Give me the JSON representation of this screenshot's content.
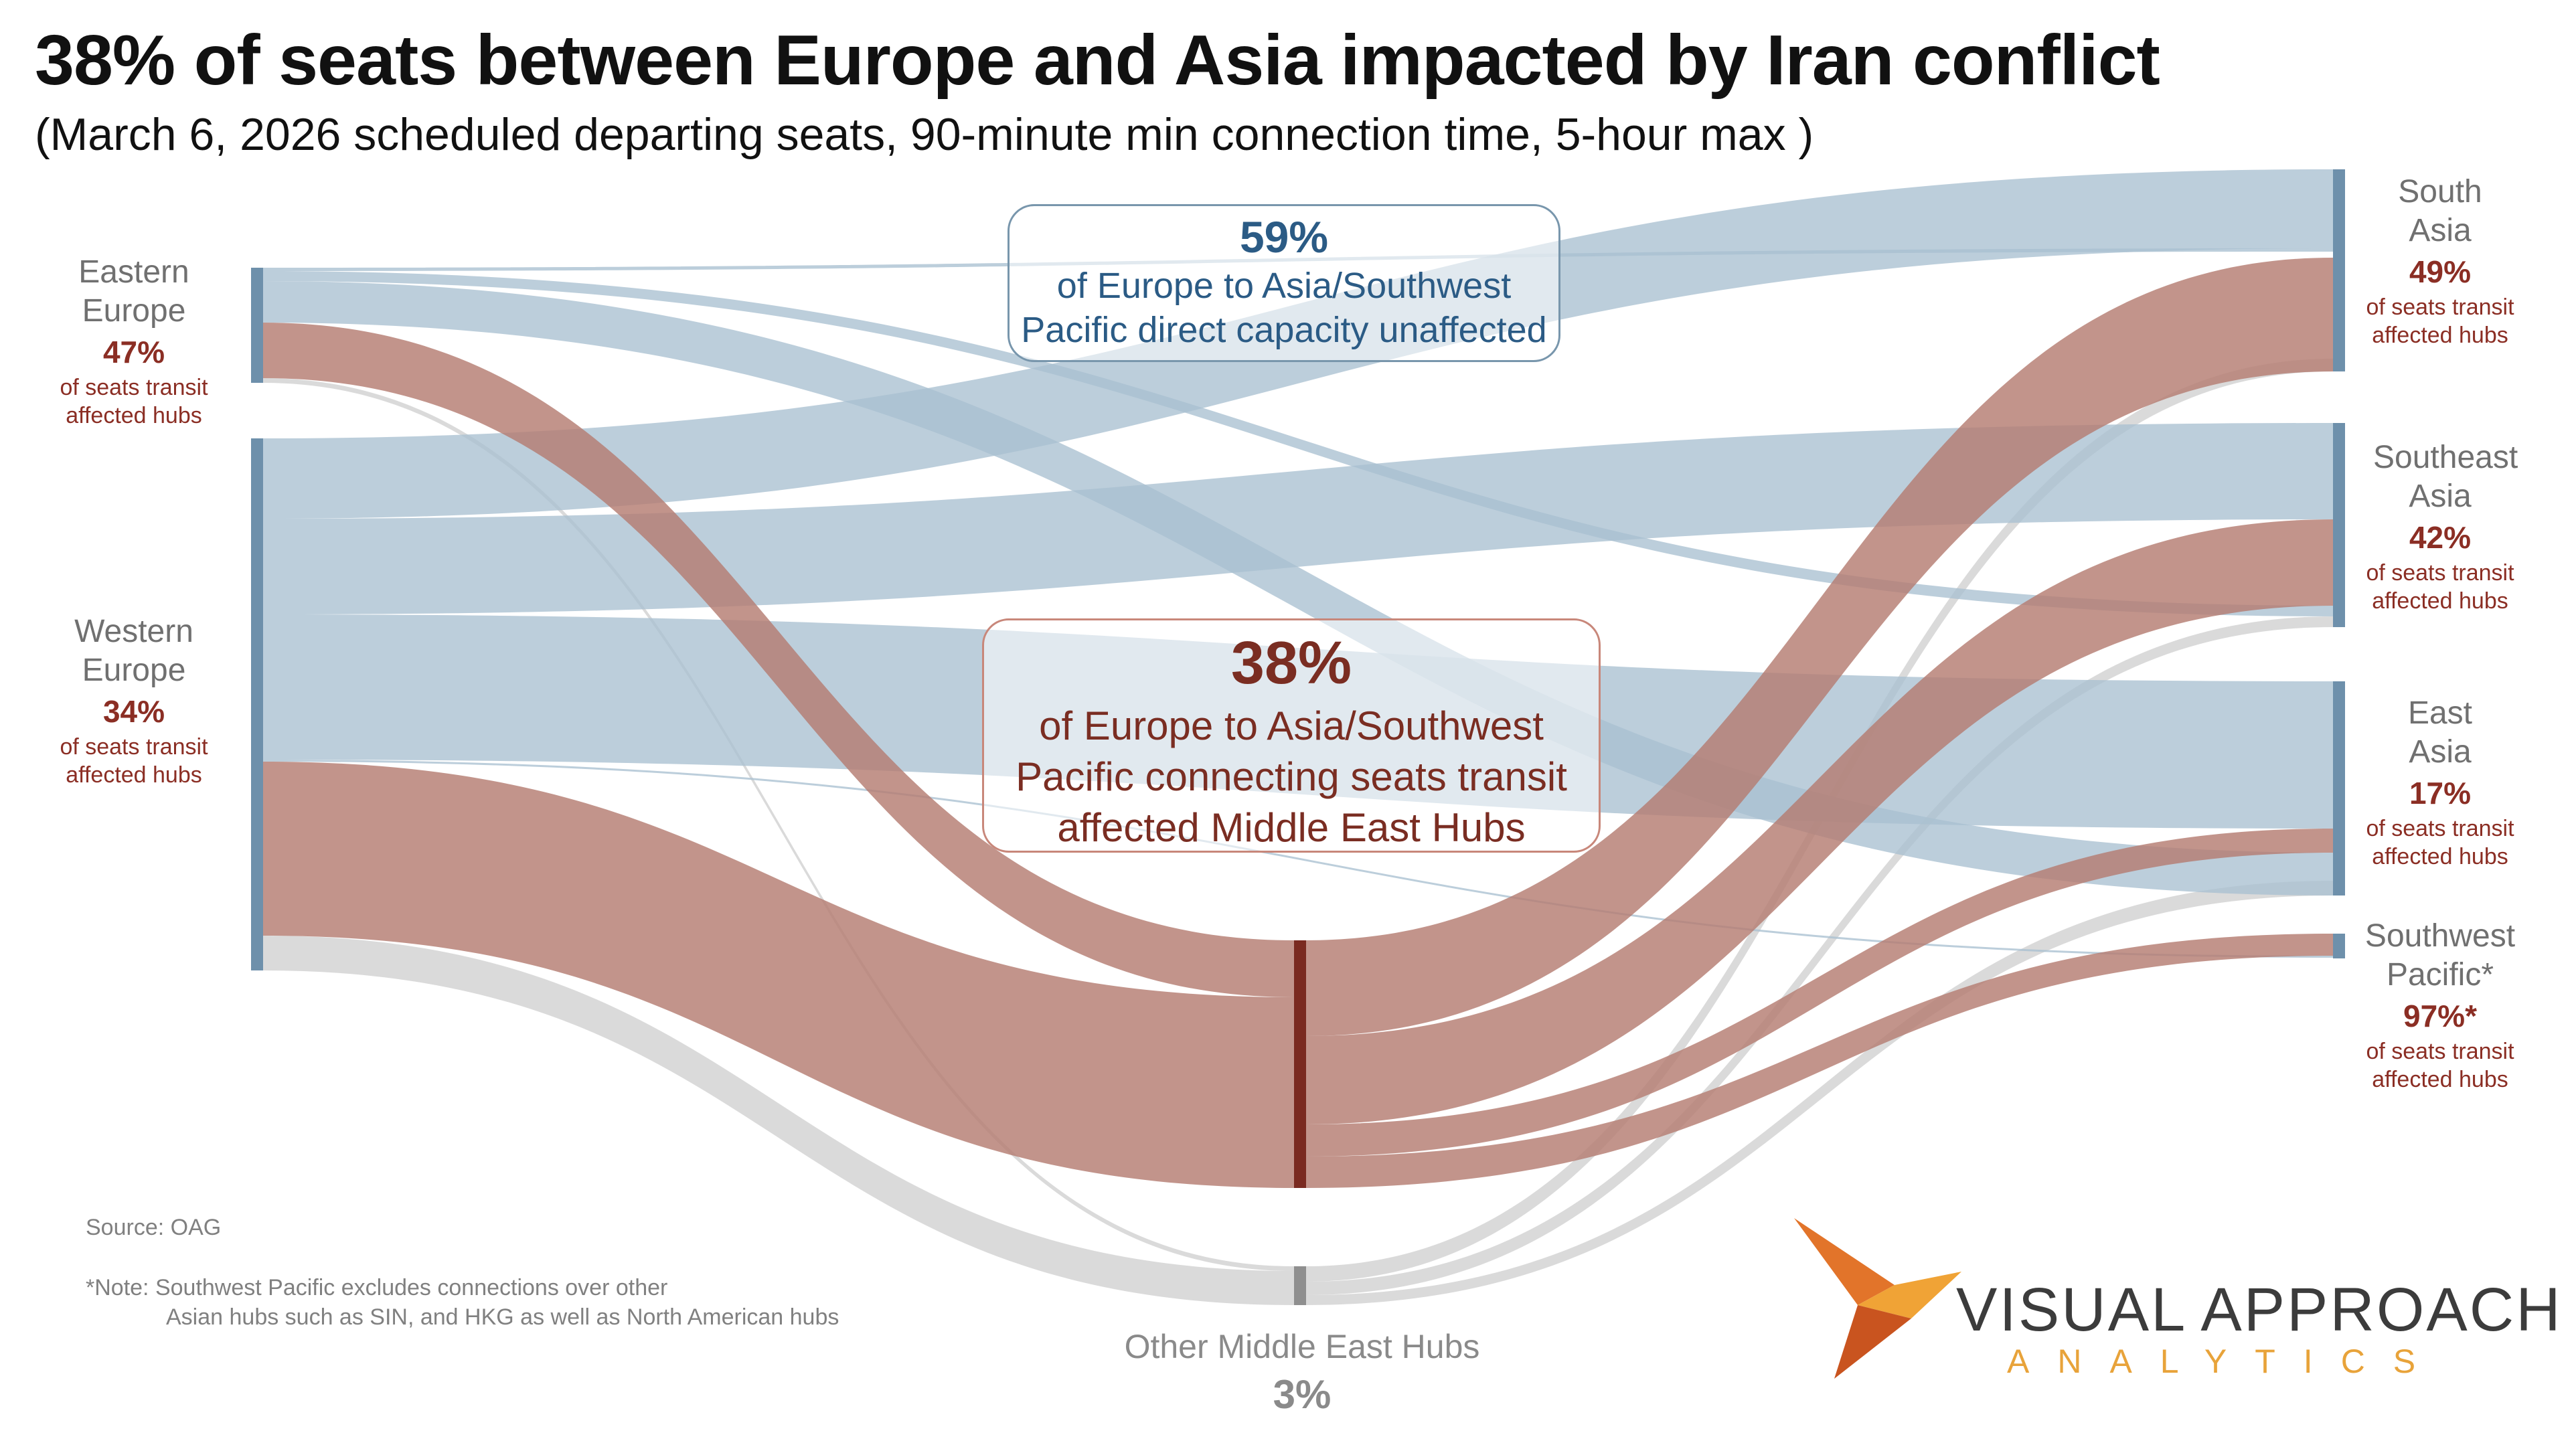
{
  "title": "38% of seats between Europe and Asia impacted by Iran conflict",
  "subtitle": "(March 6, 2026 scheduled departing seats, 90-minute min connection time, 5-hour max )",
  "colors": {
    "direct": "#a9c0d1",
    "affected": "#b57c72",
    "other": "#d4d4d4",
    "node_origin": "#6e90ab",
    "node_hub": "#7a2a20",
    "node_other": "#8f8f8f"
  },
  "callouts": {
    "direct": {
      "value": "59%",
      "text": "of Europe to Asia/Southwest Pacific direct capacity unaffected"
    },
    "affected": {
      "value": "38%",
      "text": "of Europe to Asia/Southwest Pacific connecting seats transit affected Middle East Hubs"
    }
  },
  "nodes": {
    "eastern_europe": {
      "name": "Eastern Europe",
      "pct": "47%",
      "desc": "of seats transit affected hubs"
    },
    "western_europe": {
      "name": "Western Europe",
      "pct": "34%",
      "desc": "of seats transit affected hubs"
    },
    "south_asia": {
      "name": "South Asia",
      "pct": "49%",
      "desc": "of seats transit affected hubs"
    },
    "southeast_asia": {
      "name": "Southeast Asia",
      "pct": "42%",
      "desc": "of seats transit affected hubs"
    },
    "east_asia": {
      "name": "East Asia",
      "pct": "17%",
      "desc": "of seats transit affected hubs"
    },
    "southwest_pacific": {
      "name": "Southwest Pacific*",
      "pct": "97%*",
      "desc": "of seats transit affected hubs"
    },
    "other_hubs": {
      "name": "Other Middle East Hubs",
      "pct": "3%"
    }
  },
  "source": "Source: OAG",
  "note": {
    "line1": "*Note:  Southwest Pacific excludes connections over other",
    "line2": "Asian hubs such as SIN, and HKG as well as North American hubs"
  },
  "brand": {
    "name": "VISUAL APPROACH",
    "sub": "ANALYTICS"
  },
  "chart_data": {
    "type": "sankey",
    "title": "38% of seats between Europe and Asia impacted by Iran conflict",
    "units": "approximate relative seat volume (estimated from band widths)",
    "origins": [
      {
        "name": "Eastern Europe",
        "value": 22,
        "affected_share": 0.47
      },
      {
        "name": "Western Europe",
        "value": 100,
        "affected_share": 0.34
      }
    ],
    "destinations": [
      {
        "name": "South Asia",
        "value": 37,
        "affected_share": 0.49
      },
      {
        "name": "Southeast Asia",
        "value": 38,
        "affected_share": 0.42
      },
      {
        "name": "East Asia",
        "value": 39,
        "affected_share": 0.17
      },
      {
        "name": "Southwest Pacific",
        "value": 5,
        "affected_share": 0.97
      }
    ],
    "hubs": [
      {
        "name": "Affected Middle East Hubs",
        "value": 45
      },
      {
        "name": "Other Middle East Hubs",
        "value": 7
      }
    ],
    "flows": [
      {
        "source": "Eastern Europe",
        "target": "South Asia",
        "kind": "direct",
        "value": 1
      },
      {
        "source": "Eastern Europe",
        "target": "Southeast Asia",
        "kind": "direct",
        "value": 2
      },
      {
        "source": "Eastern Europe",
        "target": "East Asia",
        "kind": "direct",
        "value": 8
      },
      {
        "source": "Eastern Europe",
        "target": "Affected Middle East Hubs",
        "kind": "affected",
        "value": 10
      },
      {
        "source": "Eastern Europe",
        "target": "Other Middle East Hubs",
        "kind": "other",
        "value": 1
      },
      {
        "source": "Western Europe",
        "target": "South Asia",
        "kind": "direct",
        "value": 16
      },
      {
        "source": "Western Europe",
        "target": "Southeast Asia",
        "kind": "direct",
        "value": 20
      },
      {
        "source": "Western Europe",
        "target": "East Asia",
        "kind": "direct",
        "value": 28
      },
      {
        "source": "Western Europe",
        "target": "Southwest Pacific",
        "kind": "direct",
        "value": 0.3
      },
      {
        "source": "Western Europe",
        "target": "Affected Middle East Hubs",
        "kind": "affected",
        "value": 35
      },
      {
        "source": "Western Europe",
        "target": "Other Middle East Hubs",
        "kind": "other",
        "value": 6
      },
      {
        "source": "Affected Middle East Hubs",
        "target": "South Asia",
        "kind": "affected",
        "value": 18
      },
      {
        "source": "Affected Middle East Hubs",
        "target": "Southeast Asia",
        "kind": "affected",
        "value": 16
      },
      {
        "source": "Affected Middle East Hubs",
        "target": "East Asia",
        "kind": "affected",
        "value": 6
      },
      {
        "source": "Affected Middle East Hubs",
        "target": "Southwest Pacific",
        "kind": "affected",
        "value": 5
      },
      {
        "source": "Other Middle East Hubs",
        "target": "South Asia",
        "kind": "other",
        "value": 2
      },
      {
        "source": "Other Middle East Hubs",
        "target": "Southeast Asia",
        "kind": "other",
        "value": 1
      },
      {
        "source": "Other Middle East Hubs",
        "target": "East Asia",
        "kind": "other",
        "value": 1
      }
    ]
  }
}
